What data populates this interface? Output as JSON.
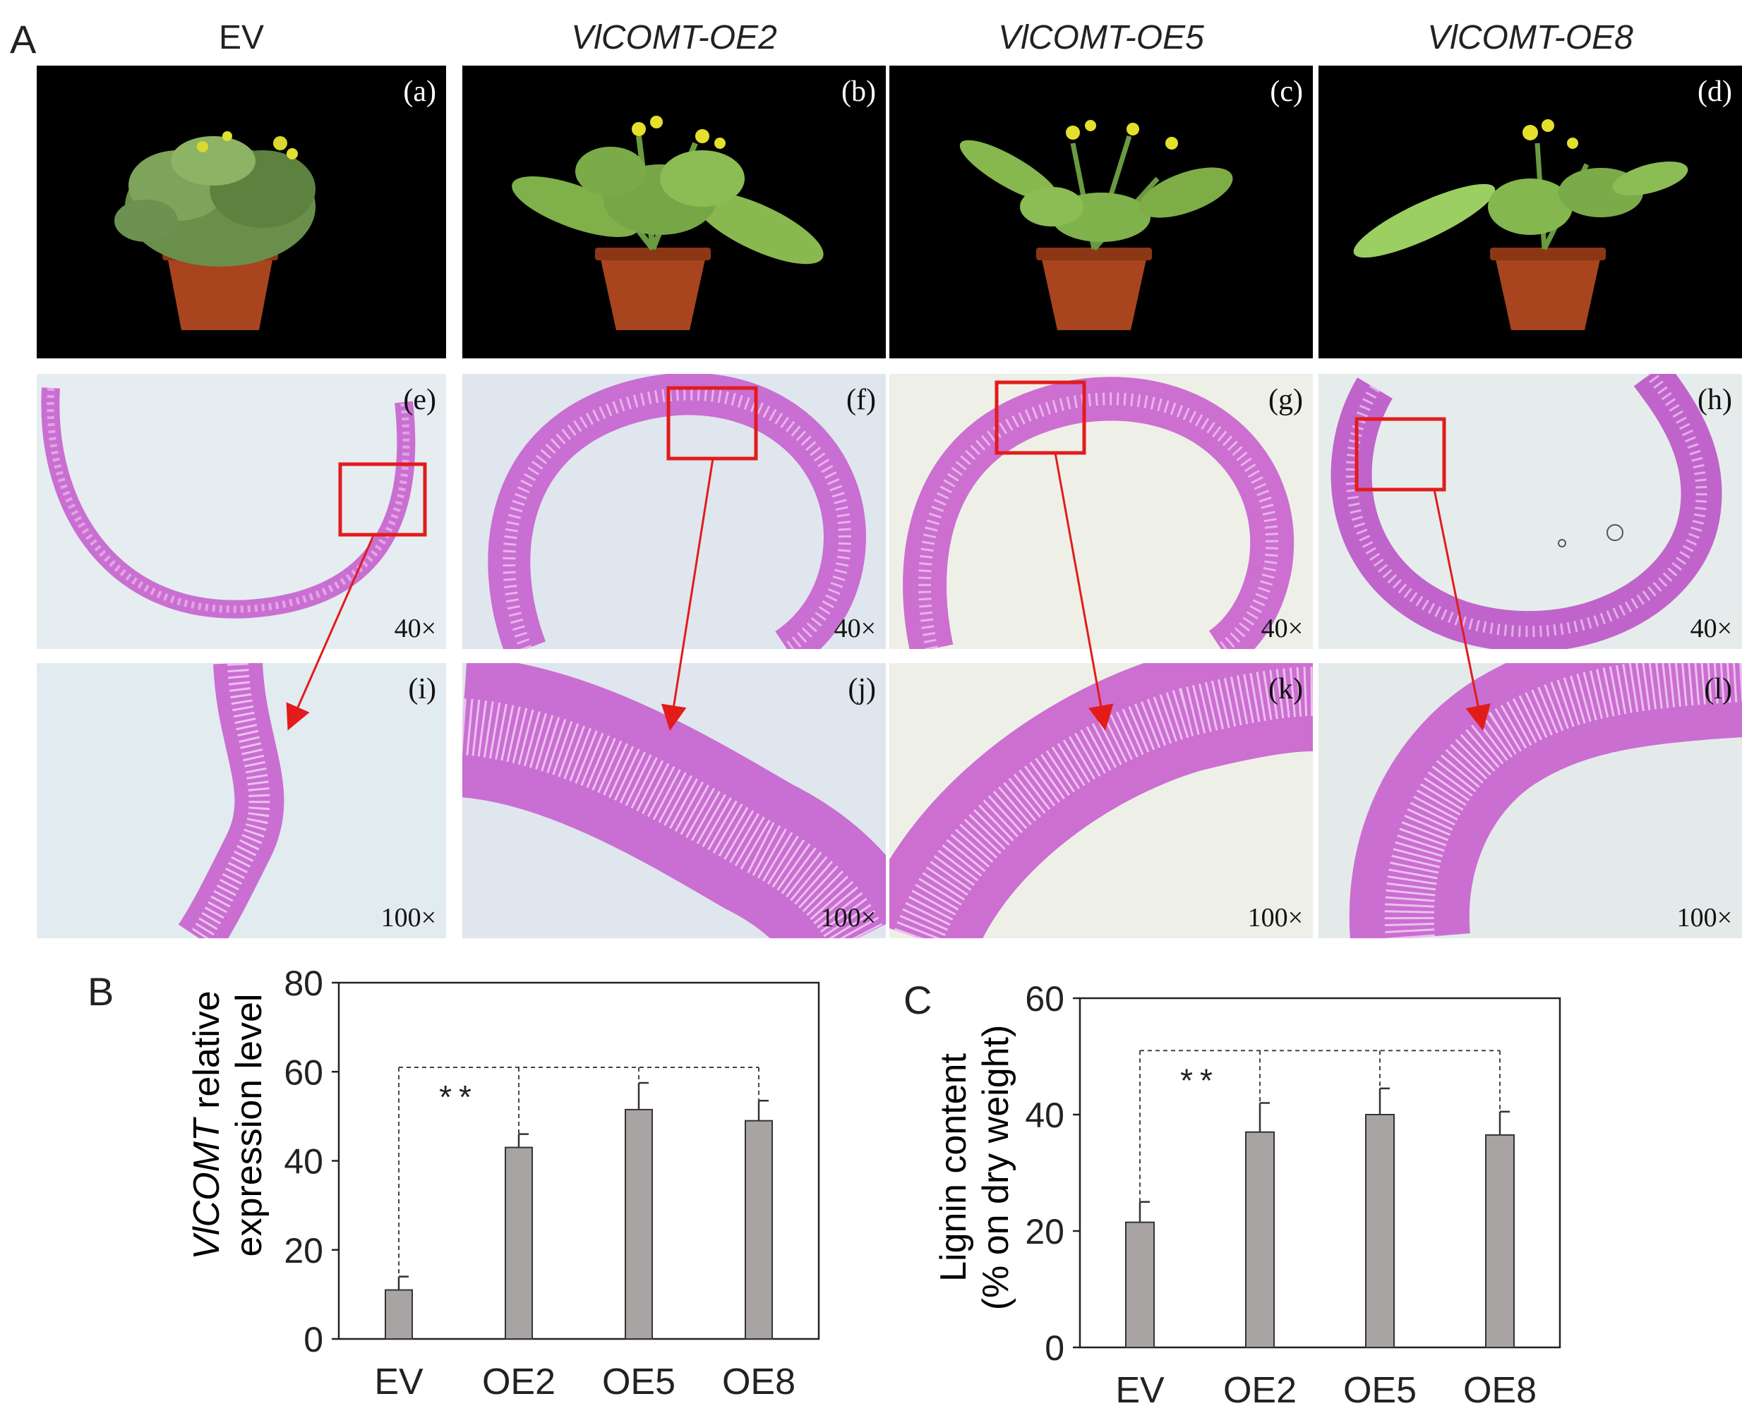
{
  "panel_labels": {
    "a": "A",
    "b": "B",
    "c": "C"
  },
  "columns": [
    {
      "title": "EV",
      "italic": false
    },
    {
      "title": "VlCOMT-OE2",
      "italic": true
    },
    {
      "title": "VlCOMT-OE5",
      "italic": true
    },
    {
      "title": "VlCOMT-OE8",
      "italic": true
    }
  ],
  "plant_photos": [
    {
      "label": "(a)"
    },
    {
      "label": "(b)"
    },
    {
      "label": "(c)"
    },
    {
      "label": "(d)"
    }
  ],
  "sections_40x": [
    {
      "label": "(e)",
      "magnification": "40×"
    },
    {
      "label": "(f)",
      "magnification": "40×"
    },
    {
      "label": "(g)",
      "magnification": "40×"
    },
    {
      "label": "(h)",
      "magnification": "40×"
    }
  ],
  "sections_100x": [
    {
      "label": "(i)",
      "magnification": "100×"
    },
    {
      "label": "(j)",
      "magnification": "100×"
    },
    {
      "label": "(k)",
      "magnification": "100×"
    },
    {
      "label": "(l)",
      "magnification": "100×"
    }
  ],
  "colors": {
    "bar_fill": "#a9a4a4",
    "stain": "#c050c8",
    "inset_box": "#e21b1b",
    "arrow": "#e21b1b",
    "photo_bg": "#000000",
    "micro_bg": "#e8eff3"
  },
  "chart_data": [
    {
      "panel": "B",
      "type": "bar",
      "categories": [
        "EV",
        "OE2",
        "OE5",
        "OE8"
      ],
      "values": [
        11,
        43,
        51.5,
        49
      ],
      "errors": [
        3,
        3,
        6,
        4.5
      ],
      "ylabel_italic": "VlCOMT",
      "ylabel_rest": " relative",
      "ylabel_line2": "expression level",
      "yticks": [
        0,
        20,
        40,
        60,
        80
      ],
      "ylim": [
        0,
        80
      ],
      "significance": "**",
      "grid": false
    },
    {
      "panel": "C",
      "type": "bar",
      "categories": [
        "EV",
        "OE2",
        "OE5",
        "OE8"
      ],
      "values": [
        21.5,
        37,
        40,
        36.5
      ],
      "errors": [
        3.5,
        5,
        4.5,
        4
      ],
      "ylabel_line1": "Lignin content",
      "ylabel_line2": "(% on dry weight)",
      "yticks": [
        0,
        20,
        40,
        60
      ],
      "ylim": [
        0,
        60
      ],
      "significance": "**",
      "grid": false
    }
  ]
}
